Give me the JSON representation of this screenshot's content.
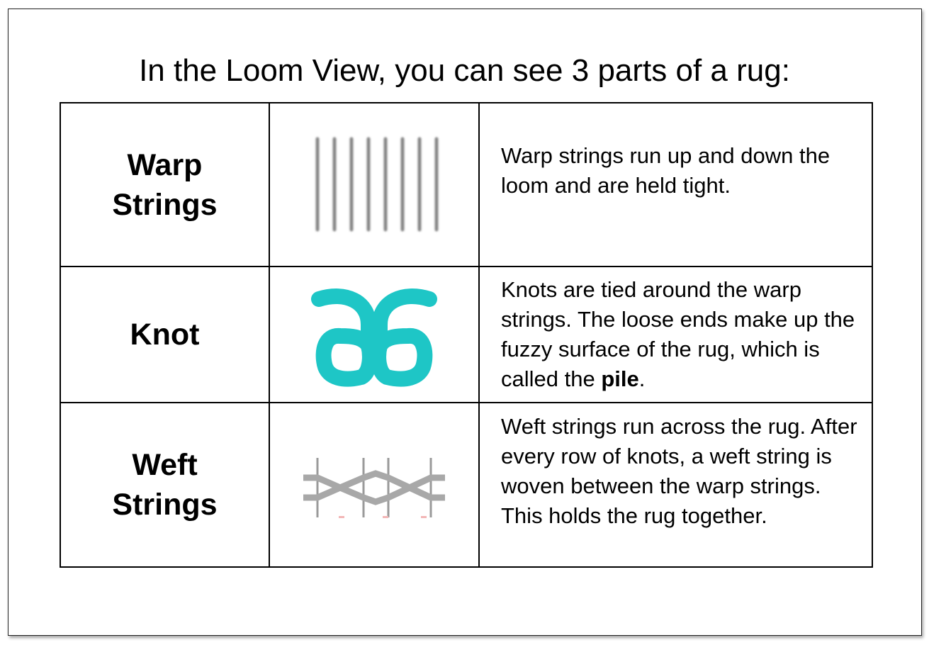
{
  "title": "In the Loom View, you can see 3 parts of a rug:",
  "colors": {
    "warp": "#888888",
    "knot": "#1ec6c6",
    "weft": "#a8a8a8"
  },
  "rows": [
    {
      "name_line1": "Warp",
      "name_line2": "Strings",
      "icon": "warp-strings-icon",
      "description": "Warp strings run up and down the loom and are held tight."
    },
    {
      "name_line1": "Knot",
      "icon": "knot-icon",
      "description_prefix": "Knots are tied around the warp strings. The loose ends make up the fuzzy surface of the rug, which is called the ",
      "description_bold": "pile",
      "description_suffix": "."
    },
    {
      "name_line1": "Weft",
      "name_line2": "Strings",
      "icon": "weft-strings-icon",
      "description": "Weft strings run across the rug. After every row of knots, a weft string is woven between the warp strings. This holds the rug together."
    }
  ]
}
